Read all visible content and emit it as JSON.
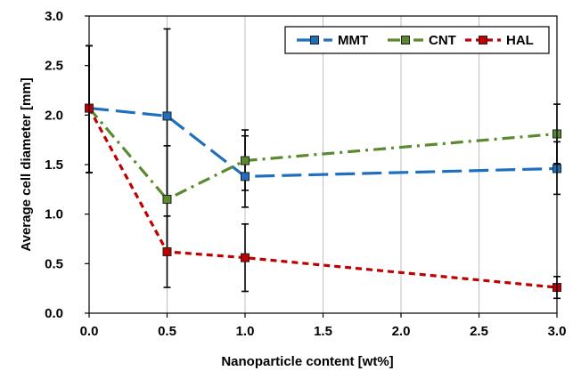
{
  "colors": {
    "MMT": "#1f6fbf",
    "CNT": "#5a8a2e",
    "HAL": "#c00000",
    "axis": "#000000",
    "grid": "#bfbfbf"
  },
  "chart_data": {
    "type": "line",
    "title": "",
    "xlabel": "Nanoparticle content [wt%]",
    "ylabel": "Average cell diameter [mm]",
    "xlim": [
      0.0,
      3.0
    ],
    "ylim": [
      0.0,
      3.0
    ],
    "x_ticks": [
      "0.0",
      "0.5",
      "1.0",
      "1.5",
      "2.0",
      "2.5",
      "3.0"
    ],
    "y_ticks": [
      "0.0",
      "0.5",
      "1.0",
      "1.5",
      "2.0",
      "2.5",
      "3.0"
    ],
    "grid": "vertical",
    "legend_position": "top-right",
    "series": [
      {
        "name": "MMT",
        "line_style": "long-dash",
        "marker": "square",
        "points": [
          {
            "x": 0.0,
            "y": 2.07,
            "err_low": 1.42,
            "err_high": 2.7
          },
          {
            "x": 0.5,
            "y": 1.99,
            "err_low": 1.12,
            "err_high": 2.87
          },
          {
            "x": 1.0,
            "y": 1.38,
            "err_low": 1.07,
            "err_high": 1.79
          },
          {
            "x": 3.0,
            "y": 1.46,
            "err_low": 1.2,
            "err_high": 1.73
          }
        ]
      },
      {
        "name": "CNT",
        "line_style": "dash-dot",
        "marker": "square",
        "points": [
          {
            "x": 0.0,
            "y": 2.07,
            "err_low": 1.42,
            "err_high": 2.7
          },
          {
            "x": 0.5,
            "y": 1.15,
            "err_low": 0.62,
            "err_high": 1.69
          },
          {
            "x": 1.0,
            "y": 1.54,
            "err_low": 1.24,
            "err_high": 1.85
          },
          {
            "x": 3.0,
            "y": 1.81,
            "err_low": 1.51,
            "err_high": 2.11
          }
        ]
      },
      {
        "name": "HAL",
        "line_style": "short-dash",
        "marker": "square",
        "points": [
          {
            "x": 0.0,
            "y": 2.07,
            "err_low": 1.42,
            "err_high": 2.7
          },
          {
            "x": 0.5,
            "y": 0.62,
            "err_low": 0.26,
            "err_high": 0.98
          },
          {
            "x": 1.0,
            "y": 0.56,
            "err_low": 0.22,
            "err_high": 0.9
          },
          {
            "x": 3.0,
            "y": 0.26,
            "err_low": 0.15,
            "err_high": 0.37
          }
        ]
      }
    ]
  }
}
